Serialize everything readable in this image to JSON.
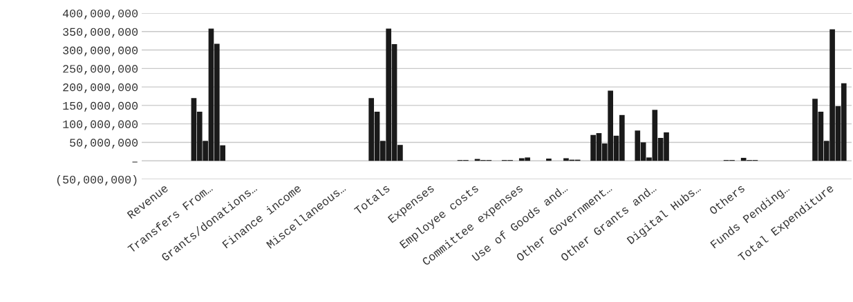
{
  "chart_data": {
    "type": "bar",
    "categories": [
      "Revenue",
      "Transfers From…",
      "Grants/donations…",
      "Finance income",
      "Miscellaneous…",
      "Totals",
      "Expenses",
      "Employee costs",
      "Committee expenses",
      "Use of Goods and…",
      "Other Government…",
      "Other Grants and…",
      "Digital Hubs…",
      "Others",
      "Funds Pending…",
      "Total Expenditure"
    ],
    "series": [
      {
        "color": "#1a1a1a",
        "values": [
          null,
          170000000,
          null,
          null,
          null,
          170000000,
          null,
          2000000,
          2000000,
          6000000,
          70000000,
          82000000,
          null,
          2000000,
          null,
          168000000
        ]
      },
      {
        "color": "#1a1a1a",
        "values": [
          null,
          133000000,
          null,
          null,
          null,
          133000000,
          null,
          2000000,
          2000000,
          null,
          75000000,
          50000000,
          null,
          2000000,
          null,
          133000000
        ]
      },
      {
        "color": "#1a1a1a",
        "values": [
          null,
          54000000,
          null,
          null,
          null,
          54000000,
          null,
          null,
          null,
          null,
          47000000,
          9000000,
          null,
          null,
          null,
          54000000
        ]
      },
      {
        "color": "#1a1a1a",
        "values": [
          null,
          358000000,
          null,
          null,
          null,
          358000000,
          null,
          5000000,
          7000000,
          7000000,
          190000000,
          138000000,
          null,
          8000000,
          null,
          356000000
        ]
      },
      {
        "color": "#1a1a1a",
        "values": [
          null,
          317000000,
          null,
          null,
          null,
          316000000,
          null,
          2000000,
          9000000,
          3000000,
          68000000,
          62000000,
          null,
          2000000,
          null,
          148000000
        ]
      },
      {
        "color": "#1a1a1a",
        "values": [
          null,
          42000000,
          null,
          null,
          null,
          43000000,
          null,
          2000000,
          null,
          3000000,
          124000000,
          77000000,
          null,
          2000000,
          null,
          210000000
        ]
      }
    ],
    "ylim": [
      -50000000,
      400000000
    ],
    "yticks": [
      {
        "value": -50000000,
        "label": "(50,000,000)"
      },
      {
        "value": 0,
        "label": "–"
      },
      {
        "value": 50000000,
        "label": "50,000,000"
      },
      {
        "value": 100000000,
        "label": "100,000,000"
      },
      {
        "value": 150000000,
        "label": "150,000,000"
      },
      {
        "value": 200000000,
        "label": "200,000,000"
      },
      {
        "value": 250000000,
        "label": "250,000,000"
      },
      {
        "value": 300000000,
        "label": "300,000,000"
      },
      {
        "value": 350000000,
        "label": "350,000,000"
      },
      {
        "value": 400000000,
        "label": "400,000,000"
      }
    ],
    "grid": "y"
  }
}
